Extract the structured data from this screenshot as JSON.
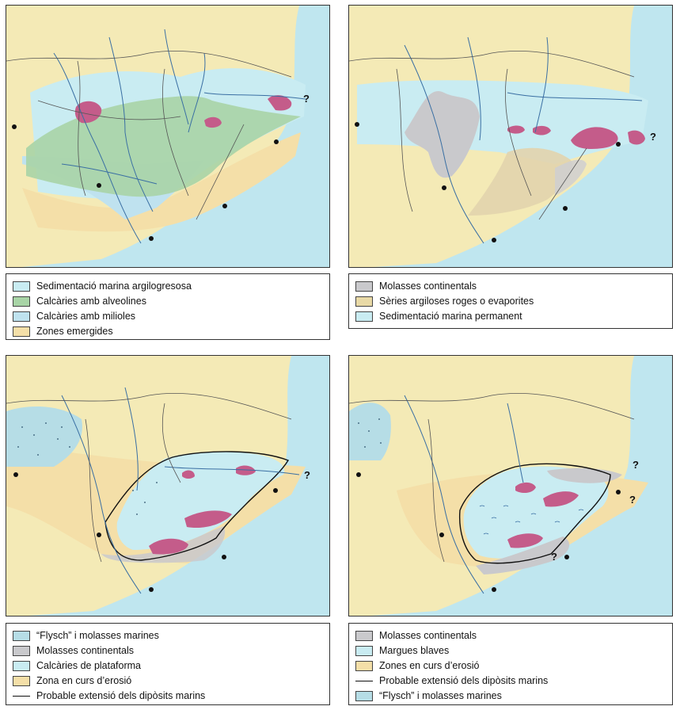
{
  "maps": [
    {
      "legend": [
        {
          "label": "Sedimentació marina argilogresosa",
          "swatch": "marine-argil",
          "color": "#c9ecf2"
        },
        {
          "label": "Calcàries amb alveolines",
          "swatch": "alveolines",
          "color": "#a8d4a6"
        },
        {
          "label": "Calcàries amb milioles",
          "swatch": "milioles",
          "color": "#bfe2ef"
        },
        {
          "label": "Zones emergides",
          "swatch": "emergides",
          "color": "#f4dfa8"
        }
      ],
      "question_marks": [
        "?"
      ]
    },
    {
      "legend": [
        {
          "label": "Molasses continentals",
          "swatch": "molasses",
          "color": "#c9c9cc"
        },
        {
          "label": "Sèries argiloses roges o evaporites",
          "swatch": "argiloses",
          "color": "#e8d9a6"
        },
        {
          "label": "Sedimentació marina permanent",
          "swatch": "marine-perm",
          "color": "#c9ecf2"
        }
      ],
      "question_marks": [
        "?"
      ]
    },
    {
      "legend": [
        {
          "label": "“Flysch” i molasses marines",
          "swatch": "flysch",
          "color": "#b6dde6"
        },
        {
          "label": "Molasses continentals",
          "swatch": "molasses",
          "color": "#c9c9cc"
        },
        {
          "label": "Calcàries de plataforma",
          "swatch": "plataforma",
          "color": "#c9ecf2"
        },
        {
          "label": "Zona en curs d’erosió",
          "swatch": "erosio",
          "color": "#f4dfa8"
        },
        {
          "label": "Probable extensió dels dipòsits marins",
          "swatch": "line",
          "color": "#111111"
        }
      ],
      "question_marks": [
        "?"
      ]
    },
    {
      "legend": [
        {
          "label": "Molasses continentals",
          "swatch": "molasses",
          "color": "#c9c9cc"
        },
        {
          "label": "Margues blaves",
          "swatch": "margues",
          "color": "#c9ecf2"
        },
        {
          "label": "Zones en curs d’erosió",
          "swatch": "erosio",
          "color": "#f4dfa8"
        },
        {
          "label": "Probable extensió dels dipòsits marins",
          "swatch": "line",
          "color": "#111111"
        },
        {
          "label": "“Flysch” i molasses marines",
          "swatch": "flysch",
          "color": "#b6dde6"
        }
      ],
      "question_marks": [
        "?",
        "?",
        "?"
      ]
    }
  ]
}
